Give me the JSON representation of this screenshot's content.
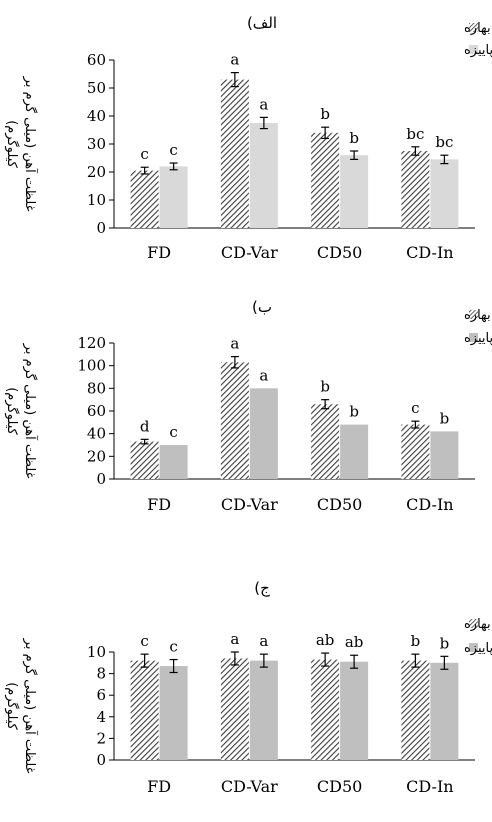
{
  "chart_data": [
    {
      "type": "bar",
      "title": "الف)",
      "ylabel_lines": [
        "غلظت آهن (میلی گرم بر",
        "کیلوگرم)"
      ],
      "categories": [
        "FD",
        "CD-Var",
        "CD50",
        "CD-In"
      ],
      "ylim": [
        0,
        60
      ],
      "yticks": [
        0,
        10,
        20,
        30,
        40,
        50,
        60
      ],
      "legend_position": "top-right",
      "series": [
        {
          "name": "کشت بهاره",
          "pattern": "hatch",
          "color": "#555555",
          "values": [
            20.5,
            53,
            34,
            27.5
          ],
          "errors": [
            1.2,
            2.5,
            2.0,
            1.5
          ],
          "letters": [
            "c",
            "a",
            "b",
            "bc"
          ]
        },
        {
          "name": "کشت پاییزه",
          "pattern": "solid",
          "color": "#d9d9d9",
          "values": [
            22,
            37.5,
            26,
            24.5
          ],
          "errors": [
            1.2,
            2.0,
            1.5,
            1.5
          ],
          "letters": [
            "c",
            "a",
            "b",
            "bc"
          ]
        }
      ]
    },
    {
      "type": "bar",
      "title": "ب)",
      "ylabel_lines": [
        "غلظت آهن (میلی گرم بر",
        "کیلوگرم)"
      ],
      "categories": [
        "FD",
        "CD-Var",
        "CD50",
        "CD-In"
      ],
      "ylim": [
        0,
        120
      ],
      "yticks": [
        0,
        20,
        40,
        60,
        80,
        100,
        120
      ],
      "legend_position": "top-right",
      "series": [
        {
          "name": "کشت بهاره",
          "pattern": "hatch",
          "color": "#555555",
          "values": [
            33,
            103,
            66,
            48
          ],
          "errors": [
            2,
            5,
            4,
            3
          ],
          "letters": [
            "d",
            "a",
            "b",
            "c"
          ]
        },
        {
          "name": "کشت پاییزه",
          "pattern": "solid",
          "color": "#bfbfbf",
          "values": [
            30,
            80,
            48,
            42
          ],
          "errors": [
            0,
            0,
            0,
            0
          ],
          "letters": [
            "c",
            "a",
            "b",
            "b"
          ]
        }
      ]
    },
    {
      "type": "bar",
      "title": "ج)",
      "ylabel_lines": [
        "غلظت آهن (میلی گرم بر",
        "کیلوگرم)"
      ],
      "categories": [
        "FD",
        "CD-Var",
        "CD50",
        "CD-In"
      ],
      "ylim": [
        0,
        10
      ],
      "yticks": [
        0,
        2,
        4,
        6,
        8,
        10
      ],
      "legend_position": "top-right",
      "series": [
        {
          "name": "کشت بهاره",
          "pattern": "hatch",
          "color": "#555555",
          "values": [
            9.2,
            9.4,
            9.3,
            9.2
          ],
          "errors": [
            0.6,
            0.6,
            0.6,
            0.6
          ],
          "letters": [
            "c",
            "a",
            "ab",
            "b"
          ]
        },
        {
          "name": "کشت پاییزه",
          "pattern": "solid",
          "color": "#bfbfbf",
          "values": [
            8.7,
            9.2,
            9.1,
            9.0
          ],
          "errors": [
            0.6,
            0.6,
            0.6,
            0.6
          ],
          "letters": [
            "c",
            "a",
            "ab",
            "b"
          ]
        }
      ]
    }
  ]
}
